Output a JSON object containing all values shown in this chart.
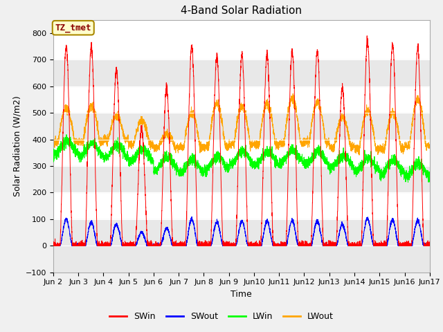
{
  "title": "4-Band Solar Radiation",
  "ylabel": "Solar Radiation (W/m2)",
  "xlabel": "Time",
  "ylim": [
    -100,
    850
  ],
  "yticks": [
    -100,
    0,
    100,
    200,
    300,
    400,
    500,
    600,
    700,
    800
  ],
  "n_days": 15,
  "points_per_day": 288,
  "colors": {
    "SWin": "#ff0000",
    "SWout": "#0000ff",
    "LWin": "#00ff00",
    "LWout": "#ffa500"
  },
  "annotation_text": "TZ_tmet",
  "annotation_color": "#8B0000",
  "annotation_bg": "#ffffcc",
  "annotation_edge": "#aa8800",
  "bg_color": "#f0f0f0",
  "plot_bg": "#ffffff",
  "band_color_dark": "#e8e8e8",
  "band_color_light": "#f5f5f5",
  "title_fontsize": 11,
  "axis_fontsize": 9,
  "tick_fontsize": 8,
  "linewidth": 0.7
}
